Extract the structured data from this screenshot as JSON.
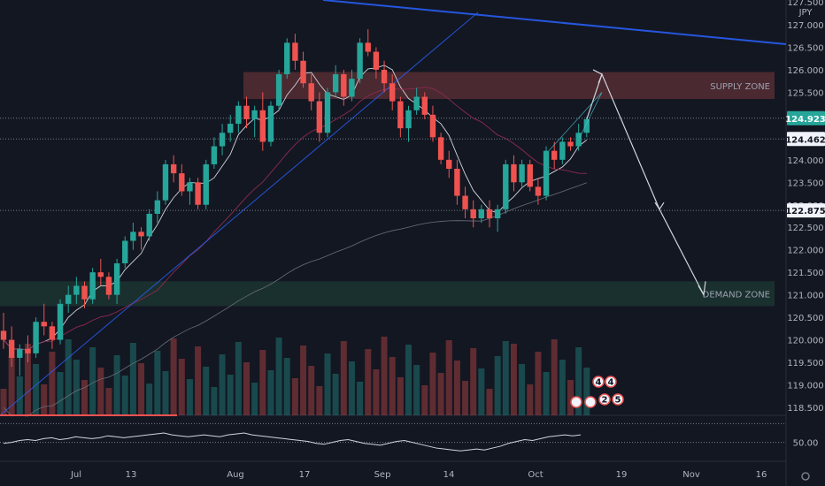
{
  "chart_data": {
    "type": "candlestick",
    "symbol_currency": "JPY",
    "y_axis": {
      "range": [
        118.4,
        127.5
      ],
      "ticks": [
        "127.500",
        "127.000",
        "126.500",
        "126.000",
        "125.500",
        "125.000",
        "124.500",
        "124.000",
        "123.500",
        "123.000",
        "122.500",
        "122.000",
        "121.500",
        "121.000",
        "120.500",
        "120.000",
        "119.500",
        "119.000",
        "118.500"
      ]
    },
    "x_axis": {
      "ticks": [
        "Jul",
        "13",
        "Aug",
        "17",
        "Sep",
        "14",
        "Oct",
        "19",
        "Nov",
        "16"
      ]
    },
    "price_tags": [
      {
        "value": "124.923",
        "color": "#26a69a"
      },
      {
        "value": "124.462",
        "color": "#f0f3fa"
      },
      {
        "value": "122.875",
        "color": "#f0f3fa"
      }
    ],
    "zones": [
      {
        "label": "SUPPLY ZONE",
        "low": 125.35,
        "high": 125.95,
        "color": "#5d3036"
      },
      {
        "label": "DEMAND ZONE",
        "low": 120.75,
        "high": 121.3,
        "color": "#1e3a34"
      }
    ],
    "candles": [
      [
        120.2,
        120.6,
        119.8,
        120.0
      ],
      [
        120.0,
        120.3,
        119.4,
        119.6
      ],
      [
        119.6,
        119.9,
        119.2,
        119.8
      ],
      [
        119.8,
        120.1,
        119.5,
        119.7
      ],
      [
        119.7,
        120.5,
        119.6,
        120.4
      ],
      [
        120.4,
        120.8,
        120.1,
        120.3
      ],
      [
        120.3,
        120.4,
        119.8,
        120.0
      ],
      [
        120.0,
        120.9,
        119.9,
        120.8
      ],
      [
        120.8,
        121.2,
        120.6,
        121.0
      ],
      [
        121.0,
        121.4,
        120.8,
        121.2
      ],
      [
        121.2,
        121.3,
        120.7,
        120.9
      ],
      [
        120.9,
        121.6,
        120.8,
        121.5
      ],
      [
        121.5,
        121.8,
        121.2,
        121.4
      ],
      [
        121.4,
        121.5,
        120.9,
        121.0
      ],
      [
        121.0,
        121.8,
        120.8,
        121.7
      ],
      [
        121.7,
        122.3,
        121.6,
        122.2
      ],
      [
        122.2,
        122.6,
        122.0,
        122.4
      ],
      [
        122.4,
        122.5,
        122.0,
        122.3
      ],
      [
        122.3,
        122.9,
        122.2,
        122.8
      ],
      [
        122.8,
        123.3,
        122.6,
        123.1
      ],
      [
        123.1,
        124.0,
        123.0,
        123.9
      ],
      [
        123.9,
        124.1,
        123.5,
        123.7
      ],
      [
        123.7,
        123.9,
        123.2,
        123.3
      ],
      [
        123.3,
        123.6,
        123.0,
        123.5
      ],
      [
        123.5,
        123.6,
        122.9,
        123.0
      ],
      [
        123.0,
        124.0,
        122.9,
        123.9
      ],
      [
        123.9,
        124.5,
        123.8,
        124.3
      ],
      [
        124.3,
        124.8,
        124.1,
        124.6
      ],
      [
        124.6,
        125.0,
        124.4,
        124.8
      ],
      [
        124.8,
        125.3,
        124.6,
        125.2
      ],
      [
        125.2,
        125.4,
        124.7,
        124.9
      ],
      [
        124.9,
        125.2,
        124.5,
        125.1
      ],
      [
        125.1,
        125.5,
        124.2,
        124.4
      ],
      [
        124.4,
        125.3,
        124.3,
        125.2
      ],
      [
        125.2,
        126.0,
        125.1,
        125.9
      ],
      [
        125.9,
        126.7,
        125.8,
        126.6
      ],
      [
        126.6,
        126.8,
        126.0,
        126.2
      ],
      [
        126.2,
        126.4,
        125.6,
        125.7
      ],
      [
        125.7,
        125.9,
        125.1,
        125.3
      ],
      [
        125.3,
        125.5,
        124.4,
        124.6
      ],
      [
        124.6,
        125.6,
        124.5,
        125.5
      ],
      [
        125.5,
        126.1,
        125.4,
        125.9
      ],
      [
        125.9,
        126.0,
        125.2,
        125.4
      ],
      [
        125.4,
        126.0,
        125.3,
        125.8
      ],
      [
        125.8,
        126.7,
        125.7,
        126.6
      ],
      [
        126.6,
        126.9,
        126.3,
        126.4
      ],
      [
        126.4,
        126.5,
        125.8,
        126.0
      ],
      [
        126.0,
        126.2,
        125.5,
        125.7
      ],
      [
        125.7,
        125.9,
        125.1,
        125.3
      ],
      [
        125.3,
        125.4,
        124.5,
        124.7
      ],
      [
        124.7,
        125.2,
        124.4,
        125.1
      ],
      [
        125.1,
        125.6,
        125.0,
        125.4
      ],
      [
        125.4,
        125.5,
        124.9,
        125.0
      ],
      [
        125.0,
        125.2,
        124.4,
        124.5
      ],
      [
        124.5,
        124.6,
        123.9,
        124.0
      ],
      [
        124.0,
        124.2,
        123.6,
        123.8
      ],
      [
        123.8,
        124.0,
        123.0,
        123.2
      ],
      [
        123.2,
        123.4,
        122.7,
        122.9
      ],
      [
        122.9,
        123.1,
        122.5,
        122.7
      ],
      [
        122.7,
        123.0,
        122.6,
        122.9
      ],
      [
        122.9,
        123.1,
        122.5,
        122.7
      ],
      [
        122.7,
        123.0,
        122.4,
        122.9
      ],
      [
        122.9,
        124.0,
        122.8,
        123.9
      ],
      [
        123.9,
        124.1,
        123.3,
        123.5
      ],
      [
        123.5,
        124.0,
        123.4,
        123.9
      ],
      [
        123.9,
        124.0,
        123.3,
        123.4
      ],
      [
        123.4,
        123.6,
        123.0,
        123.2
      ],
      [
        123.2,
        124.3,
        123.1,
        124.2
      ],
      [
        124.2,
        124.4,
        123.8,
        124.0
      ],
      [
        124.0,
        124.5,
        123.9,
        124.4
      ],
      [
        124.4,
        124.5,
        124.2,
        124.3
      ],
      [
        124.3,
        124.8,
        124.2,
        124.6
      ],
      [
        124.6,
        124.95,
        124.5,
        124.9
      ]
    ],
    "annotations": {
      "event_badges": [
        "4",
        "4",
        "2",
        "5"
      ]
    },
    "oscillator": {
      "levels": [
        "50.00"
      ],
      "values": [
        49,
        50,
        52,
        53,
        52,
        54,
        55,
        53,
        54,
        56,
        55,
        54,
        55,
        57,
        56,
        55,
        56,
        57,
        58,
        59,
        60,
        58,
        57,
        56,
        57,
        58,
        57,
        56,
        58,
        59,
        60,
        58,
        57,
        56,
        55,
        54,
        53,
        52,
        51,
        49,
        48,
        50,
        52,
        53,
        51,
        49,
        48,
        47,
        49,
        51,
        52,
        50,
        48,
        46,
        44,
        43,
        42,
        41,
        42,
        43,
        42,
        44,
        46,
        49,
        51,
        53,
        52,
        54,
        56,
        57,
        58,
        57,
        58
      ]
    }
  }
}
